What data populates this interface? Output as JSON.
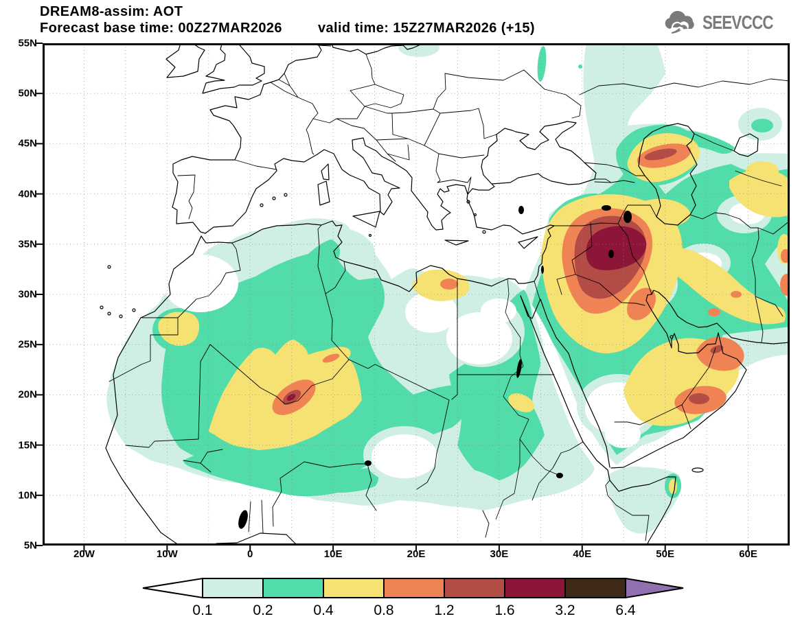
{
  "header": {
    "title": "DREAM8-assim: AOT",
    "base_time_label": "Forecast base time: 00Z27MAR2026",
    "valid_time_label": "valid time: 15Z27MAR2026 (+15)"
  },
  "logo": {
    "text": "SEEVCCC"
  },
  "map": {
    "lat_tick_labels": [
      "55N",
      "50N",
      "45N",
      "40N",
      "35N",
      "30N",
      "25N",
      "20N",
      "15N",
      "10N",
      "5N"
    ],
    "lon_tick_labels": [
      "20W",
      "10W",
      "0",
      "10E",
      "20E",
      "30E",
      "40E",
      "50E",
      "60E"
    ],
    "grid_step_deg": 5
  },
  "colorbar": {
    "tick_labels": [
      "0.1",
      "0.2",
      "0.4",
      "0.8",
      "1.2",
      "1.6",
      "3.2",
      "6.4"
    ],
    "colors": [
      "#ffffff",
      "#cfefe4",
      "#52dcaa",
      "#f6e272",
      "#f08354",
      "#b24c44",
      "#8d1537",
      "#3f2a18",
      "#9070ae"
    ]
  },
  "chart_data": {
    "type": "filled-contour-map",
    "variable": "AOT (aerosol optical thickness)",
    "model": "DREAM8-assim",
    "forecast_base_time": "00Z27MAR2026",
    "valid_time": "15Z27MAR2026",
    "lead_hours": 15,
    "lon_range_deg": [
      -25,
      65
    ],
    "lat_range_deg": [
      5,
      55
    ],
    "contour_levels": [
      0.1,
      0.2,
      0.4,
      0.8,
      1.2,
      1.6,
      3.2,
      6.4
    ],
    "hotspots": [
      {
        "region": "Syria / NW Iraq (approx 42E, 34N)",
        "max_level_band": "1.6-3.2"
      },
      {
        "region": "S Algeria / Niger border (approx 5E, 20N)",
        "max_level_band": "1.2-1.6"
      },
      {
        "region": "North Caspian lowland (approx 49E, 44N)",
        "max_level_band": "1.2-1.6"
      },
      {
        "region": "Oman interior (approx 54E, 19N)",
        "max_level_band": "1.2-1.6"
      },
      {
        "region": "Strait of Hormuz (approx 56E, 26N)",
        "max_level_band": "1.2-1.6"
      },
      {
        "region": "Libya / Egypt coast (approx 24E, 31N)",
        "max_level_band": "0.8-1.2"
      },
      {
        "region": "Morocco / W Sahara (approx 9W, 27N)",
        "max_level_band": "0.4-0.8"
      },
      {
        "region": "Arabian peninsula and Zagros belt",
        "max_level_band": "0.4-0.8"
      }
    ]
  }
}
